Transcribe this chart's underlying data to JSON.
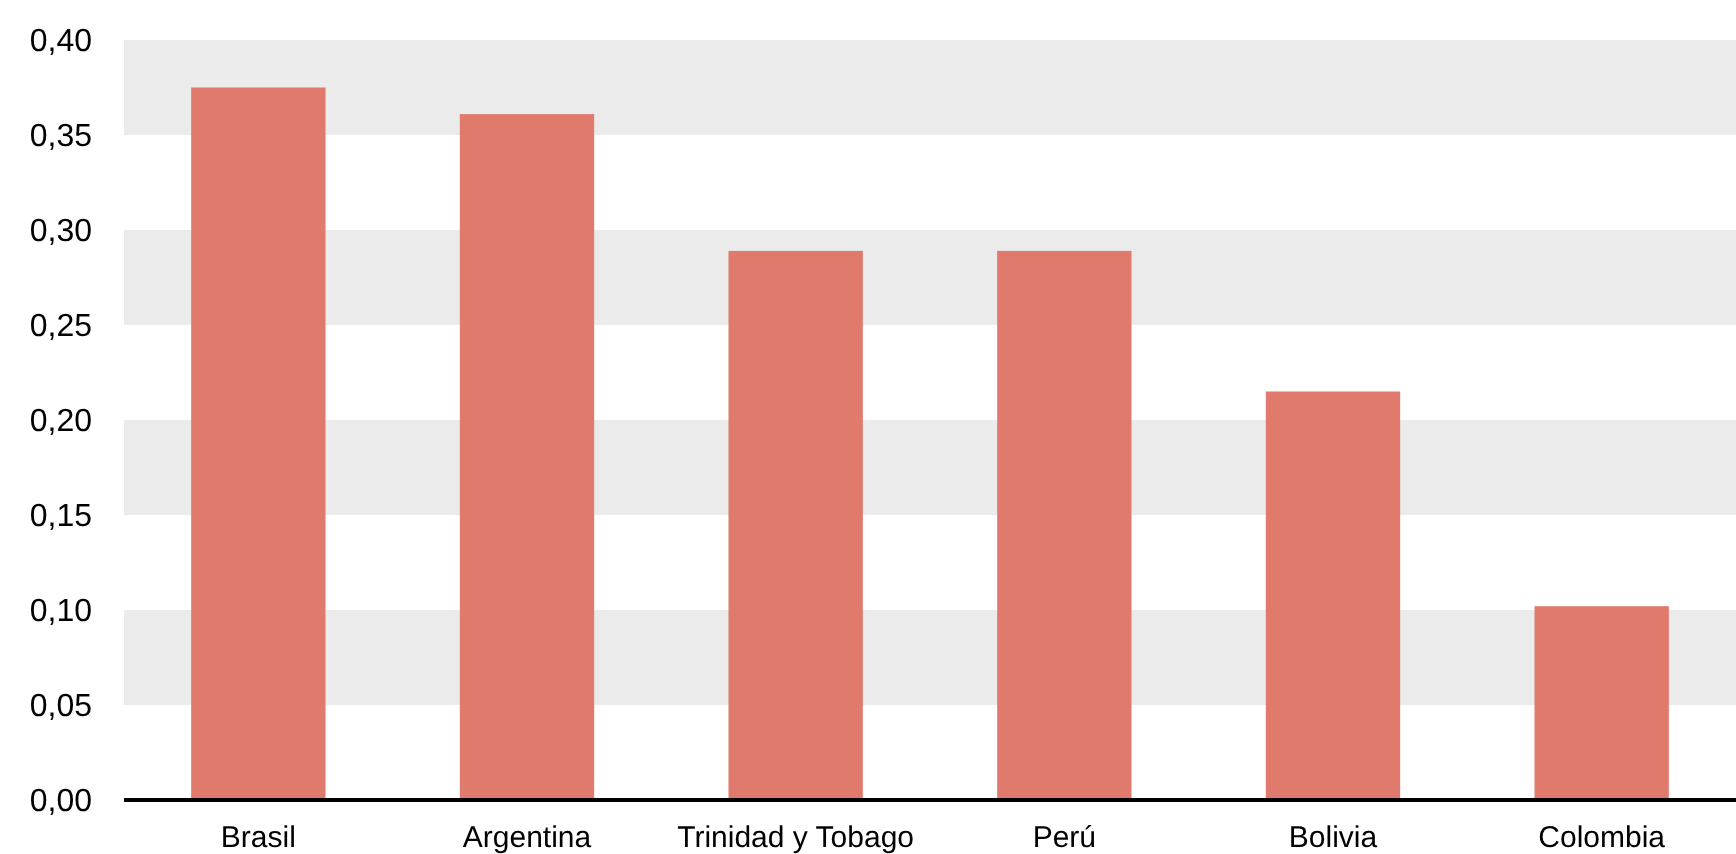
{
  "chart_data": {
    "type": "bar",
    "categories": [
      "Brasil",
      "Argentina",
      "Trinidad y Tobago",
      "Perú",
      "Bolivia",
      "Colombia"
    ],
    "values": [
      0.375,
      0.361,
      0.289,
      0.289,
      0.215,
      0.102
    ],
    "color": "#e07a6c",
    "ylim": [
      0,
      0.4
    ],
    "yticks": [
      {
        "value": 0,
        "label": "0,00"
      },
      {
        "value": 0.05,
        "label": "0,05"
      },
      {
        "value": 0.1,
        "label": "0,10"
      },
      {
        "value": 0.15,
        "label": "0,15"
      },
      {
        "value": 0.2,
        "label": "0,20"
      },
      {
        "value": 0.25,
        "label": "0,25"
      },
      {
        "value": 0.3,
        "label": "0,30"
      },
      {
        "value": 0.35,
        "label": "0,35"
      },
      {
        "value": 0.4,
        "label": "0,40"
      }
    ],
    "bands": [
      {
        "axis": "y",
        "from": 0.05,
        "to": 0.1,
        "color": "#ebebeb"
      },
      {
        "axis": "y",
        "from": 0.15,
        "to": 0.2,
        "color": "#ebebeb"
      },
      {
        "axis": "y",
        "from": 0.25,
        "to": 0.3,
        "color": "#ebebeb"
      },
      {
        "axis": "y",
        "from": 0.35,
        "to": 0.4,
        "color": "#ebebeb"
      }
    ]
  }
}
